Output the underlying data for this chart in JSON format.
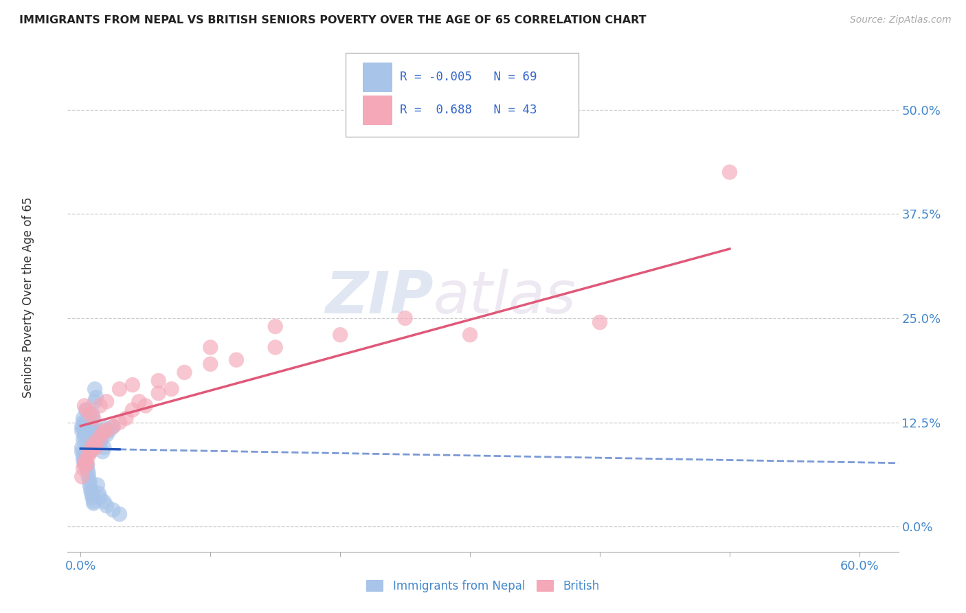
{
  "title": "IMMIGRANTS FROM NEPAL VS BRITISH SENIORS POVERTY OVER THE AGE OF 65 CORRELATION CHART",
  "source": "Source: ZipAtlas.com",
  "ylabel": "Seniors Poverty Over the Age of 65",
  "xlim": [
    -0.01,
    0.63
  ],
  "ylim": [
    -0.03,
    0.58
  ],
  "nepal_R": -0.005,
  "nepal_N": 69,
  "british_R": 0.688,
  "british_N": 43,
  "nepal_color": "#a8c4e8",
  "british_color": "#f4a8b8",
  "nepal_line_color": "#2255bb",
  "british_line_color": "#e05878",
  "legend_label_nepal": "Immigrants from Nepal",
  "legend_label_british": "British",
  "watermark_zip": "ZIP",
  "watermark_atlas": "atlas",
  "ytick_vals": [
    0.0,
    0.125,
    0.25,
    0.375,
    0.5
  ],
  "ytick_labels": [
    "0.0%",
    "12.5%",
    "25.0%",
    "37.5%",
    "50.0%"
  ],
  "xtick_labels_ends": [
    "0.0%",
    "60.0%"
  ],
  "nepal_x": [
    0.001,
    0.001,
    0.002,
    0.002,
    0.002,
    0.002,
    0.003,
    0.003,
    0.003,
    0.003,
    0.004,
    0.004,
    0.004,
    0.005,
    0.005,
    0.005,
    0.006,
    0.006,
    0.007,
    0.007,
    0.008,
    0.008,
    0.009,
    0.009,
    0.01,
    0.01,
    0.011,
    0.011,
    0.012,
    0.012,
    0.013,
    0.014,
    0.015,
    0.016,
    0.017,
    0.018,
    0.019,
    0.02,
    0.022,
    0.025,
    0.001,
    0.001,
    0.002,
    0.002,
    0.003,
    0.003,
    0.004,
    0.004,
    0.005,
    0.005,
    0.006,
    0.006,
    0.007,
    0.007,
    0.008,
    0.008,
    0.009,
    0.009,
    0.01,
    0.01,
    0.011,
    0.012,
    0.013,
    0.014,
    0.015,
    0.018,
    0.02,
    0.025,
    0.03
  ],
  "nepal_y": [
    0.115,
    0.12,
    0.118,
    0.125,
    0.13,
    0.105,
    0.119,
    0.115,
    0.112,
    0.108,
    0.14,
    0.125,
    0.118,
    0.113,
    0.12,
    0.115,
    0.112,
    0.118,
    0.11,
    0.115,
    0.118,
    0.105,
    0.13,
    0.135,
    0.11,
    0.115,
    0.165,
    0.115,
    0.11,
    0.108,
    0.112,
    0.115,
    0.1,
    0.105,
    0.09,
    0.095,
    0.118,
    0.11,
    0.115,
    0.12,
    0.095,
    0.09,
    0.085,
    0.08,
    0.075,
    0.08,
    0.085,
    0.09,
    0.075,
    0.07,
    0.065,
    0.06,
    0.055,
    0.05,
    0.045,
    0.042,
    0.038,
    0.035,
    0.03,
    0.028,
    0.15,
    0.155,
    0.05,
    0.04,
    0.035,
    0.03,
    0.025,
    0.02,
    0.015
  ],
  "british_x": [
    0.001,
    0.002,
    0.003,
    0.004,
    0.005,
    0.006,
    0.007,
    0.008,
    0.009,
    0.01,
    0.012,
    0.014,
    0.016,
    0.018,
    0.02,
    0.025,
    0.03,
    0.035,
    0.04,
    0.045,
    0.05,
    0.06,
    0.07,
    0.08,
    0.1,
    0.12,
    0.15,
    0.2,
    0.25,
    0.3,
    0.003,
    0.005,
    0.007,
    0.01,
    0.015,
    0.02,
    0.03,
    0.04,
    0.06,
    0.1,
    0.15,
    0.4,
    0.5
  ],
  "british_y": [
    0.06,
    0.07,
    0.075,
    0.08,
    0.075,
    0.085,
    0.09,
    0.09,
    0.095,
    0.1,
    0.095,
    0.105,
    0.11,
    0.115,
    0.115,
    0.12,
    0.125,
    0.13,
    0.14,
    0.15,
    0.145,
    0.16,
    0.165,
    0.185,
    0.195,
    0.2,
    0.215,
    0.23,
    0.25,
    0.23,
    0.145,
    0.14,
    0.135,
    0.13,
    0.145,
    0.15,
    0.165,
    0.17,
    0.175,
    0.215,
    0.24,
    0.245,
    0.425
  ]
}
